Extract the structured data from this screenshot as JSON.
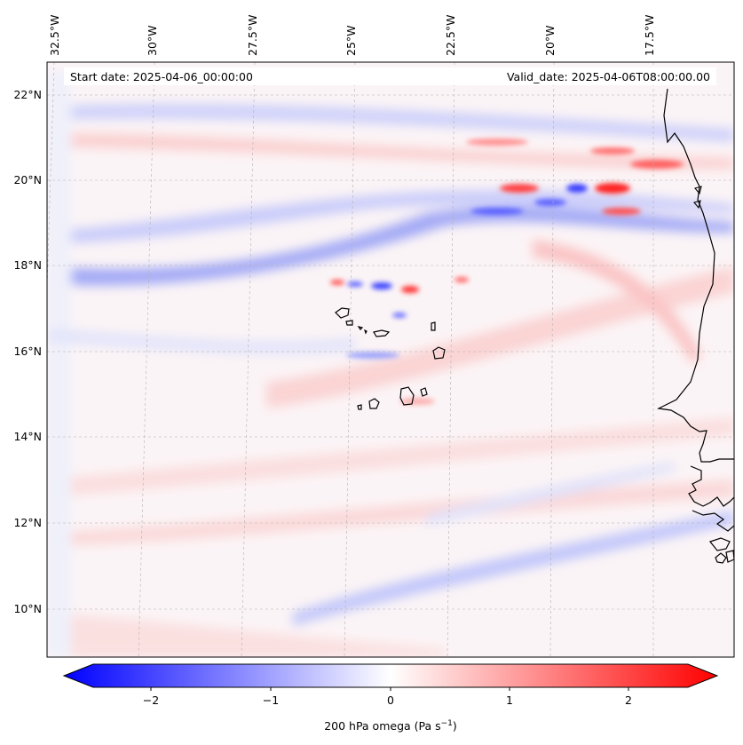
{
  "map": {
    "start_date": "Start date: 2025-04-06_00:00:00",
    "valid_date": "Valid_date: 2025-04-06T08:00:00.00",
    "lon_labels": [
      "32.5°W",
      "30°W",
      "27.5°W",
      "25°W",
      "22.5°W",
      "20°W",
      "17.5°W"
    ],
    "lat_labels": [
      "22°N",
      "20°N",
      "18°N",
      "16°N",
      "14°N",
      "12°N",
      "10°N"
    ],
    "field": "200 hPa omega",
    "region": "Cabo Verde / West African coast"
  },
  "colorbar": {
    "label_main": "200 hPa omega (Pa s",
    "label_exp": "−1",
    "label_close": ")",
    "ticks": [
      "−2",
      "−1",
      "0",
      "1",
      "2"
    ],
    "range": [
      -2.75,
      2.75
    ],
    "colors": {
      "neg": "#0000ff",
      "mid": "#ffffff",
      "pos": "#ff0000"
    }
  }
}
